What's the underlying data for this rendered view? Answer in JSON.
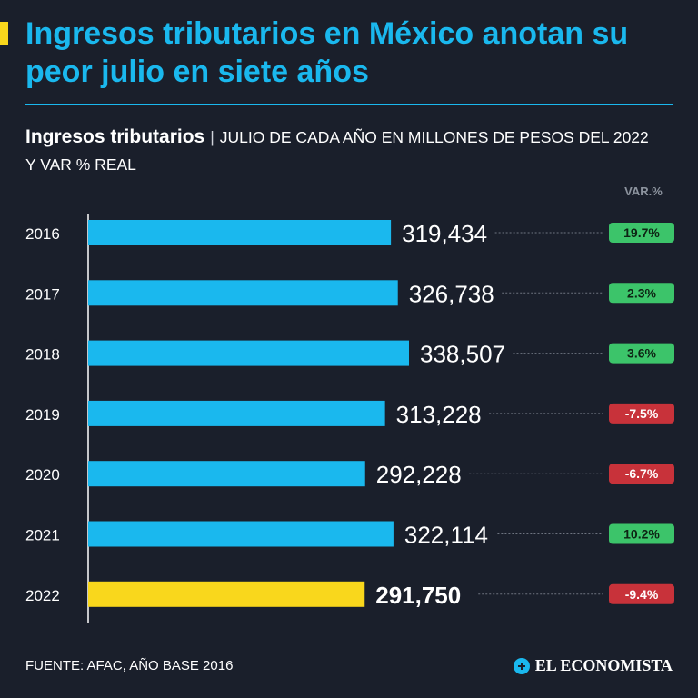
{
  "header": {
    "title": "Ingresos tributarios en México anotan su peor julio en siete años"
  },
  "subtitle": {
    "bold": "Ingresos tributarios",
    "separator": "|",
    "rest": "JULIO DE CADA AÑO EN MILLONES DE PESOS DEL 2022 Y VAR % REAL"
  },
  "colors": {
    "accent": "#1ab8ee",
    "highlight": "#f9d71c",
    "positive": "#3cc46a",
    "negative": "#c8323a",
    "background": "#1a1f2b"
  },
  "chart_data": {
    "type": "bar",
    "orientation": "horizontal",
    "title": "Ingresos tributarios",
    "categories": [
      "2016",
      "2017",
      "2018",
      "2019",
      "2020",
      "2021",
      "2022"
    ],
    "values": [
      319434,
      326738,
      338507,
      313228,
      292228,
      322114,
      291750
    ],
    "value_labels": [
      "319,434",
      "326,738",
      "338,507",
      "313,228",
      "292,228",
      "322,114",
      "291,750"
    ],
    "var_header": "VAR.%",
    "var_labels": [
      "19.7%",
      "2.3%",
      "3.6%",
      "-7.5%",
      "-6.7%",
      "10.2%",
      "-9.4%"
    ],
    "var_values": [
      19.7,
      2.3,
      3.6,
      -7.5,
      -6.7,
      10.2,
      -9.4
    ],
    "highlighted": "2022",
    "xlim": [
      0,
      338507
    ]
  },
  "footer": {
    "source": "FUENTE: AFAC, AÑO BASE 2016",
    "brand": "EL ECONOMISTA"
  }
}
